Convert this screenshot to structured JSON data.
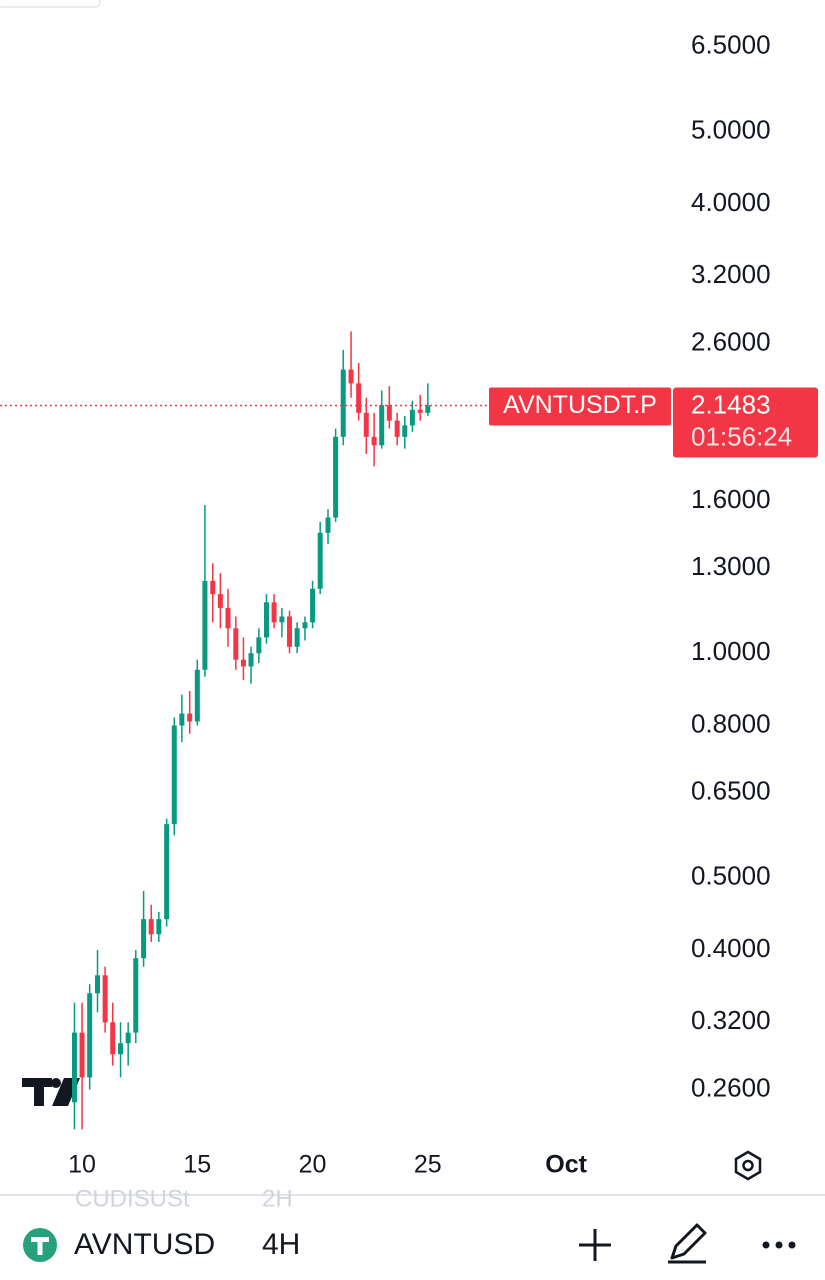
{
  "chart_data": {
    "type": "candlestick",
    "symbol_label": "AVNTUSDT.P",
    "countdown": "01:56:24",
    "log_scale": true,
    "grid": false,
    "up_color": "#089981",
    "down_color": "#f23645",
    "x": [
      9.67,
      10.0,
      10.33,
      10.67,
      11.0,
      11.33,
      11.67,
      12.0,
      12.33,
      12.67,
      13.0,
      13.33,
      13.67,
      14.0,
      14.33,
      14.67,
      15.0,
      15.33,
      15.67,
      16.0,
      16.33,
      16.67,
      17.0,
      17.33,
      17.67,
      18.0,
      18.33,
      18.67,
      19.0,
      19.33,
      19.67,
      20.0,
      20.33,
      20.67,
      21.0,
      21.33,
      21.67,
      22.0,
      22.33,
      22.67,
      23.0,
      23.33,
      23.67,
      24.0,
      24.33,
      24.67,
      25.0
    ],
    "open": [
      0.25,
      0.31,
      0.27,
      0.35,
      0.37,
      0.32,
      0.29,
      0.3,
      0.31,
      0.39,
      0.44,
      0.42,
      0.44,
      0.59,
      0.8,
      0.83,
      0.81,
      0.95,
      1.25,
      1.2,
      1.15,
      1.08,
      0.98,
      0.96,
      1.0,
      1.05,
      1.17,
      1.1,
      1.12,
      1.02,
      1.08,
      1.1,
      1.22,
      1.45,
      1.52,
      1.95,
      2.4,
      2.3,
      2.1,
      1.95,
      1.9,
      2.15,
      2.05,
      1.95,
      2.02,
      2.12,
      2.1
    ],
    "high": [
      0.34,
      0.34,
      0.36,
      0.4,
      0.38,
      0.34,
      0.32,
      0.32,
      0.4,
      0.48,
      0.46,
      0.45,
      0.6,
      0.82,
      0.88,
      0.89,
      0.98,
      1.58,
      1.32,
      1.28,
      1.22,
      1.12,
      1.05,
      1.02,
      1.08,
      1.2,
      1.2,
      1.15,
      1.14,
      1.1,
      1.12,
      1.25,
      1.5,
      1.56,
      2.0,
      2.55,
      2.7,
      2.45,
      2.2,
      2.1,
      2.25,
      2.28,
      2.1,
      2.08,
      2.18,
      2.22,
      2.3
    ],
    "low": [
      0.23,
      0.23,
      0.26,
      0.33,
      0.31,
      0.28,
      0.27,
      0.28,
      0.3,
      0.38,
      0.41,
      0.41,
      0.43,
      0.57,
      0.76,
      0.78,
      0.8,
      0.93,
      1.1,
      1.08,
      1.02,
      0.95,
      0.92,
      0.91,
      0.97,
      1.03,
      1.08,
      1.05,
      1.0,
      1.0,
      1.04,
      1.08,
      1.2,
      1.4,
      1.5,
      1.9,
      2.2,
      2.05,
      1.85,
      1.78,
      1.88,
      2.0,
      1.9,
      1.88,
      1.98,
      2.05,
      2.08
    ],
    "close": [
      0.31,
      0.27,
      0.35,
      0.37,
      0.32,
      0.29,
      0.3,
      0.31,
      0.39,
      0.44,
      0.42,
      0.44,
      0.59,
      0.8,
      0.83,
      0.81,
      0.95,
      1.25,
      1.2,
      1.15,
      1.08,
      0.98,
      0.96,
      1.0,
      1.05,
      1.17,
      1.1,
      1.12,
      1.02,
      1.08,
      1.1,
      1.22,
      1.45,
      1.52,
      1.95,
      2.4,
      2.3,
      2.1,
      1.95,
      1.9,
      2.15,
      2.05,
      1.95,
      2.02,
      2.12,
      2.1,
      2.1483
    ],
    "xlim": [
      6.44,
      35.94
    ],
    "xticks": [
      10,
      15,
      20,
      25,
      {
        "value": 31,
        "label": "Oct"
      }
    ],
    "ylim": [
      0.226,
      7.51
    ],
    "yticks": [
      {
        "value": 6.5,
        "label": "6.5000"
      },
      {
        "value": 5,
        "label": "5.0000"
      },
      {
        "value": 4,
        "label": "4.0000"
      },
      {
        "value": 3.2,
        "label": "3.2000"
      },
      {
        "value": 2.6,
        "label": "2.6000"
      },
      {
        "value": 1.6,
        "label": "1.6000"
      },
      {
        "value": 1.3,
        "label": "1.3000"
      },
      {
        "value": 1,
        "label": "1.0000"
      },
      {
        "value": 0.8,
        "label": "0.8000"
      },
      {
        "value": 0.65,
        "label": "0.6500"
      },
      {
        "value": 0.5,
        "label": "0.5000"
      },
      {
        "value": 0.4,
        "label": "0.4000"
      },
      {
        "value": 0.32,
        "label": "0.3200"
      },
      {
        "value": 0.26,
        "label": "0.2600"
      }
    ]
  },
  "toolbar": {
    "symbol": "AVNTUSD",
    "interval": "4H",
    "ghost_symbol": "CUDISUSt",
    "ghost_interval": "2H"
  }
}
